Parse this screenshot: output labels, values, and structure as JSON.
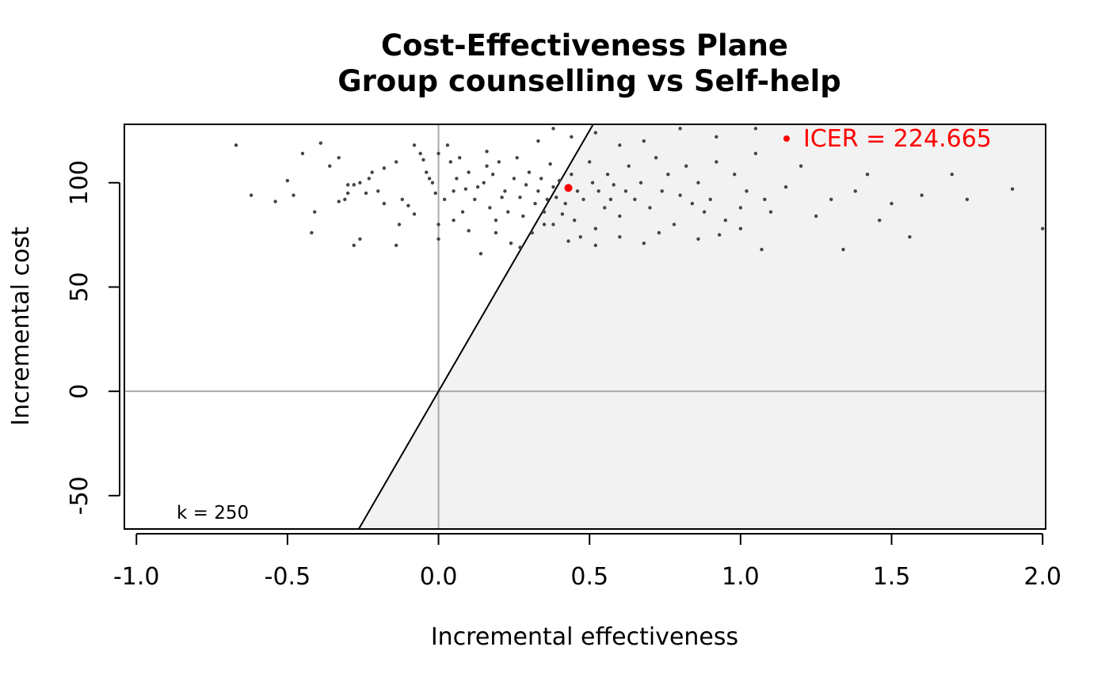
{
  "chart_data": {
    "type": "scatter",
    "title": "Cost-Effectiveness Plane",
    "subtitle": "Group counselling vs Self-help",
    "xlabel": "Incremental effectiveness",
    "ylabel": "Incremental cost",
    "xlim": [
      -1.04,
      2.01
    ],
    "ylim": [
      -66,
      128
    ],
    "x_ticks": [
      -1.0,
      -0.5,
      0.0,
      0.5,
      1.0,
      1.5,
      2.0
    ],
    "x_tick_labels": [
      "-1.0",
      "-0.5",
      "0.0",
      "0.5",
      "1.0",
      "1.5",
      "2.0"
    ],
    "y_ticks": [
      -50,
      0,
      50,
      100
    ],
    "y_tick_labels": [
      "-50",
      "0",
      "50",
      "100"
    ],
    "wtp_k": 250,
    "k_label": "k = 250",
    "icer": {
      "x": 0.43,
      "y": 97.5,
      "value": 224.665,
      "label": "ICER = 224.665",
      "color": "#ff0000"
    },
    "region_color": "#f2f2f2",
    "point_color": "#444444",
    "reference_line_color": "#aaaaaa",
    "points": [
      [
        -0.67,
        118
      ],
      [
        -0.62,
        94
      ],
      [
        -0.54,
        91
      ],
      [
        -0.5,
        101
      ],
      [
        -0.48,
        94
      ],
      [
        -0.45,
        114
      ],
      [
        -0.42,
        76
      ],
      [
        -0.41,
        86
      ],
      [
        -0.39,
        119
      ],
      [
        -0.36,
        108
      ],
      [
        -0.33,
        112
      ],
      [
        -0.33,
        91
      ],
      [
        -0.31,
        92
      ],
      [
        -0.3,
        95
      ],
      [
        -0.3,
        99
      ],
      [
        -0.28,
        70
      ],
      [
        -0.28,
        99
      ],
      [
        -0.26,
        73
      ],
      [
        -0.26,
        100
      ],
      [
        -0.24,
        95
      ],
      [
        -0.23,
        102
      ],
      [
        -0.22,
        105
      ],
      [
        -0.2,
        96
      ],
      [
        -0.18,
        107
      ],
      [
        -0.18,
        90
      ],
      [
        -0.14,
        110
      ],
      [
        -0.14,
        70
      ],
      [
        -0.13,
        80
      ],
      [
        -0.12,
        92
      ],
      [
        -0.1,
        89
      ],
      [
        -0.08,
        85
      ],
      [
        -0.06,
        114
      ],
      [
        -0.05,
        111
      ],
      [
        -0.04,
        105
      ],
      [
        -0.03,
        102
      ],
      [
        -0.02,
        100
      ],
      [
        -0.01,
        95
      ],
      [
        0.0,
        114
      ],
      [
        0.0,
        73
      ],
      [
        0.02,
        92
      ],
      [
        0.03,
        118
      ],
      [
        0.04,
        110
      ],
      [
        0.05,
        96
      ],
      [
        0.06,
        102
      ],
      [
        0.07,
        112
      ],
      [
        0.08,
        86
      ],
      [
        0.09,
        97
      ],
      [
        0.1,
        105
      ],
      [
        0.12,
        92
      ],
      [
        0.13,
        98
      ],
      [
        0.14,
        66
      ],
      [
        0.15,
        100
      ],
      [
        0.16,
        108
      ],
      [
        0.17,
        88
      ],
      [
        0.18,
        104
      ],
      [
        0.19,
        82
      ],
      [
        0.2,
        110
      ],
      [
        0.21,
        93
      ],
      [
        0.22,
        96
      ],
      [
        0.23,
        86
      ],
      [
        0.24,
        71
      ],
      [
        0.25,
        102
      ],
      [
        0.26,
        112
      ],
      [
        0.27,
        93
      ],
      [
        0.28,
        84
      ],
      [
        0.29,
        99
      ],
      [
        0.3,
        105
      ],
      [
        0.31,
        76
      ],
      [
        0.32,
        90
      ],
      [
        0.33,
        96
      ],
      [
        0.34,
        102
      ],
      [
        0.35,
        86
      ],
      [
        0.36,
        92
      ],
      [
        0.37,
        109
      ],
      [
        0.38,
        98
      ],
      [
        0.38,
        80
      ],
      [
        0.39,
        93
      ],
      [
        0.4,
        101
      ],
      [
        0.41,
        85
      ],
      [
        0.42,
        90
      ],
      [
        0.44,
        104
      ],
      [
        0.45,
        82
      ],
      [
        0.46,
        96
      ],
      [
        0.47,
        74
      ],
      [
        0.48,
        92
      ],
      [
        0.5,
        110
      ],
      [
        0.51,
        100
      ],
      [
        0.52,
        78
      ],
      [
        0.53,
        96
      ],
      [
        0.55,
        88
      ],
      [
        0.56,
        104
      ],
      [
        0.57,
        92
      ],
      [
        0.58,
        99
      ],
      [
        0.6,
        84
      ],
      [
        0.62,
        96
      ],
      [
        0.63,
        108
      ],
      [
        0.65,
        92
      ],
      [
        0.67,
        100
      ],
      [
        0.7,
        88
      ],
      [
        0.72,
        112
      ],
      [
        0.74,
        96
      ],
      [
        0.76,
        104
      ],
      [
        0.78,
        80
      ],
      [
        0.8,
        94
      ],
      [
        0.82,
        108
      ],
      [
        0.84,
        90
      ],
      [
        0.86,
        100
      ],
      [
        0.88,
        86
      ],
      [
        0.9,
        92
      ],
      [
        0.92,
        110
      ],
      [
        0.95,
        82
      ],
      [
        0.98,
        104
      ],
      [
        1.0,
        88
      ],
      [
        1.02,
        96
      ],
      [
        1.05,
        114
      ],
      [
        1.08,
        92
      ],
      [
        1.1,
        86
      ],
      [
        1.15,
        98
      ],
      [
        1.2,
        108
      ],
      [
        1.25,
        84
      ],
      [
        1.3,
        92
      ],
      [
        1.34,
        68
      ],
      [
        1.38,
        96
      ],
      [
        1.42,
        104
      ],
      [
        1.46,
        82
      ],
      [
        1.5,
        90
      ],
      [
        1.56,
        74
      ],
      [
        1.6,
        94
      ],
      [
        1.7,
        104
      ],
      [
        1.75,
        92
      ],
      [
        1.9,
        97
      ],
      [
        2.0,
        78
      ],
      [
        0.05,
        82
      ],
      [
        0.1,
        77
      ],
      [
        0.19,
        76
      ],
      [
        0.27,
        69
      ],
      [
        0.35,
        80
      ],
      [
        0.43,
        72
      ],
      [
        0.52,
        70
      ],
      [
        0.6,
        74
      ],
      [
        0.68,
        71
      ],
      [
        0.73,
        76
      ],
      [
        0.86,
        73
      ],
      [
        0.93,
        75
      ],
      [
        1.0,
        78
      ],
      [
        1.07,
        68
      ],
      [
        -0.08,
        118
      ],
      [
        0.0,
        80
      ],
      [
        0.16,
        115
      ],
      [
        0.33,
        120
      ],
      [
        0.38,
        126
      ],
      [
        0.44,
        122
      ],
      [
        0.52,
        124
      ],
      [
        0.6,
        118
      ],
      [
        0.68,
        120
      ],
      [
        0.8,
        126
      ],
      [
        0.92,
        122
      ],
      [
        1.05,
        126
      ]
    ]
  }
}
